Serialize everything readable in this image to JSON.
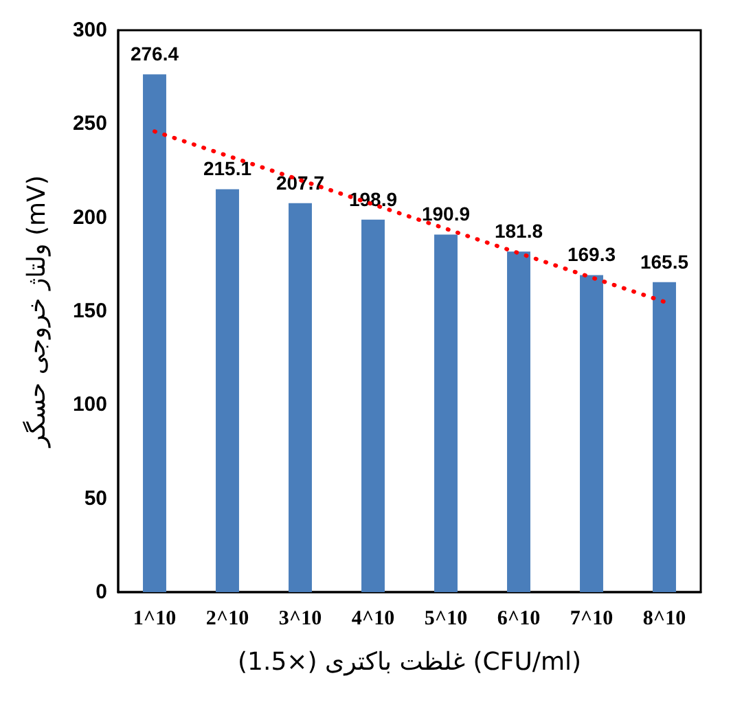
{
  "chart_data": {
    "type": "bar",
    "xlabel": "غلظت باکتری (×1.5) (CFU/ml)",
    "ylabel": "ولتاژ خروجی حسگر (mV)",
    "categories": [
      "1^10",
      "2^10",
      "3^10",
      "4^10",
      "5^10",
      "6^10",
      "7^10",
      "8^10"
    ],
    "ylim": [
      0,
      300
    ],
    "yticks": [
      0,
      50,
      100,
      150,
      200,
      250,
      300
    ],
    "grid": false,
    "series": [
      {
        "color": "#4a7ebb",
        "values": [
          276.4,
          215.1,
          207.7,
          198.9,
          190.9,
          181.8,
          169.3,
          165.5
        ],
        "value_labels": [
          "276.4",
          "215.1",
          "207.7",
          "198.9",
          "190.9",
          "181.8",
          "169.3",
          "165.5"
        ]
      },
      {
        "type": "line",
        "color": "#ff0000",
        "line_style": "dotted",
        "x": [
          "1^10",
          "8^10"
        ],
        "values": [
          246,
          155
        ]
      }
    ]
  }
}
